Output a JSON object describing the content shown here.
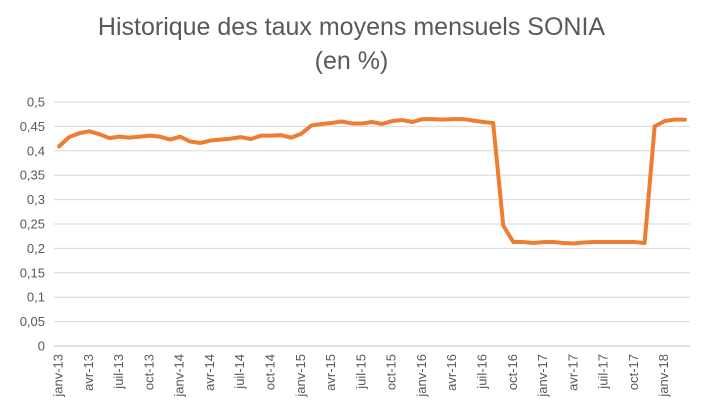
{
  "chart_data": {
    "type": "line",
    "title": "Historique des taux moyens mensuels SONIA",
    "subtitle": "(en %)",
    "xlabel": "",
    "ylabel": "",
    "ylim": [
      0,
      0.5
    ],
    "yticks": [
      "0",
      "0,05",
      "0,1",
      "0,15",
      "0,2",
      "0,25",
      "0,3",
      "0,35",
      "0,4",
      "0,45",
      "0,5"
    ],
    "xtick_labels": [
      "janv-13",
      "avr-13",
      "juil-13",
      "oct-13",
      "janv-14",
      "avr-14",
      "juil-14",
      "oct-14",
      "janv-15",
      "avr-15",
      "juil-15",
      "oct-15",
      "janv-16",
      "avr-16",
      "juil-16",
      "oct-16",
      "janv-17",
      "avr-17",
      "juil-17",
      "oct-17",
      "janv-18"
    ],
    "grid": "horizontal",
    "legend": "none",
    "series": [
      {
        "color": "#ED7D31",
        "values": [
          0.409,
          0.428,
          0.436,
          0.44,
          0.434,
          0.426,
          0.429,
          0.427,
          0.429,
          0.431,
          0.429,
          0.423,
          0.429,
          0.419,
          0.416,
          0.421,
          0.423,
          0.425,
          0.428,
          0.424,
          0.431,
          0.431,
          0.432,
          0.427,
          0.435,
          0.452,
          0.455,
          0.457,
          0.46,
          0.456,
          0.456,
          0.459,
          0.455,
          0.461,
          0.463,
          0.459,
          0.465,
          0.465,
          0.464,
          0.465,
          0.465,
          0.462,
          0.459,
          0.457,
          0.247,
          0.213,
          0.213,
          0.211,
          0.213,
          0.213,
          0.211,
          0.21,
          0.212,
          0.213,
          0.213,
          0.213,
          0.213,
          0.213,
          0.211,
          0.45,
          0.461,
          0.464,
          0.464
        ]
      }
    ]
  }
}
